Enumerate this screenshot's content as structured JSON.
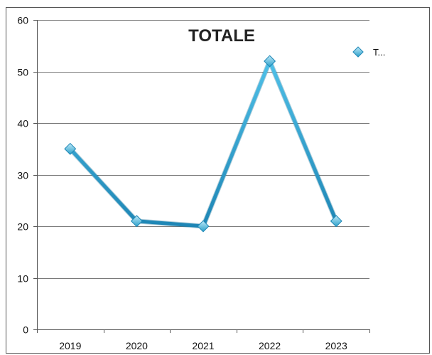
{
  "chart_data": {
    "type": "line",
    "title": "TOTALE",
    "xlabel": "",
    "ylabel": "",
    "categories": [
      "2019",
      "2020",
      "2021",
      "2022",
      "2023"
    ],
    "series": [
      {
        "name": "T...",
        "values": [
          35,
          21,
          20,
          52,
          21
        ],
        "color": "#2a9fc9"
      }
    ],
    "ylim": [
      0,
      60
    ],
    "yticks": [
      "0",
      "10",
      "20",
      "30",
      "40",
      "50",
      "60"
    ],
    "grid": "horizontal",
    "legend_position": "top-right"
  }
}
